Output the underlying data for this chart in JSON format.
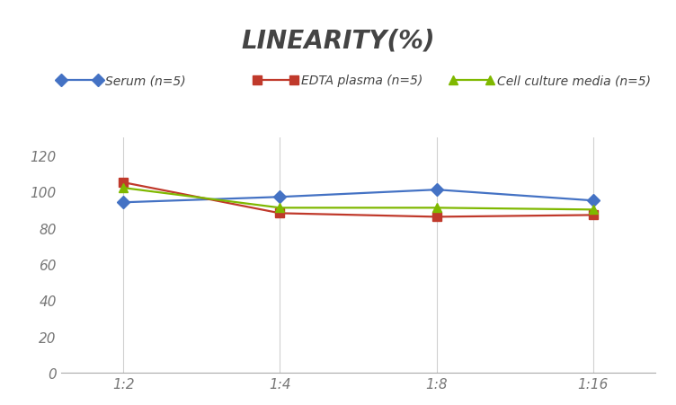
{
  "title": "LINEARITY(%)",
  "x_labels": [
    "1:2",
    "1:4",
    "1:8",
    "1:16"
  ],
  "x_positions": [
    0,
    1,
    2,
    3
  ],
  "series": [
    {
      "label": "Serum (n=5)",
      "color": "#4472C4",
      "marker": "D",
      "values": [
        94,
        97,
        101,
        95
      ]
    },
    {
      "label": "EDTA plasma (n=5)",
      "color": "#C0392B",
      "marker": "s",
      "values": [
        105,
        88,
        86,
        87
      ]
    },
    {
      "label": "Cell culture media (n=5)",
      "color": "#7FB800",
      "marker": "^",
      "values": [
        102,
        91,
        91,
        90
      ]
    }
  ],
  "ylim": [
    0,
    130
  ],
  "yticks": [
    0,
    20,
    40,
    60,
    80,
    100,
    120
  ],
  "grid_color": "#D0D0D0",
  "background_color": "#FFFFFF",
  "title_fontsize": 20,
  "legend_fontsize": 10,
  "tick_fontsize": 11,
  "tick_color": "#777777"
}
